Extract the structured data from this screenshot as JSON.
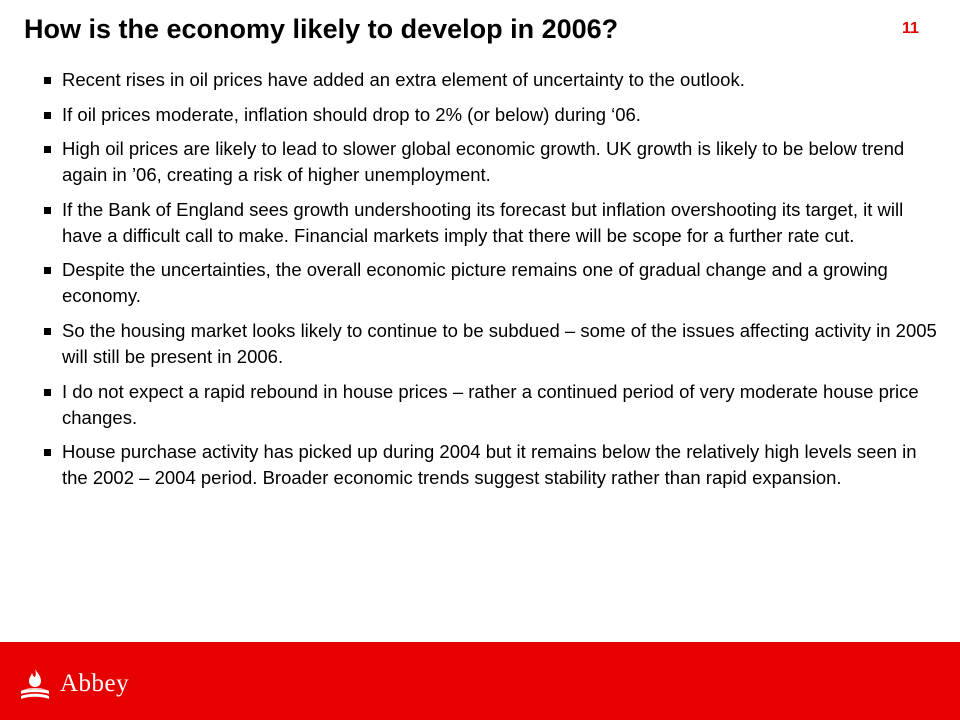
{
  "slide": {
    "title": "How is the economy likely to develop in 2006?",
    "page_number": "11",
    "bullets": [
      "Recent rises in oil prices have added an extra element of uncertainty to the outlook.",
      "If oil prices moderate, inflation should drop to 2% (or below) during ‘06.",
      "High oil prices are likely to lead to slower global economic growth.  UK growth is likely to be below trend again in ’06,  creating a risk of higher unemployment.",
      "If the Bank of England sees growth undershooting its forecast but inflation overshooting its target, it will have a difficult call to make.  Financial markets imply that there will be scope for a further rate cut.",
      "Despite the uncertainties, the overall economic picture remains one of gradual change and a growing economy.",
      "So the housing market looks likely to continue to be subdued – some of the issues affecting activity in 2005 will still be present in 2006.",
      "I do not expect a rapid rebound in house prices – rather a continued period of very moderate house price changes.",
      "House purchase activity has picked up during 2004 but it remains below the relatively high levels seen in the 2002 – 2004 period.  Broader economic trends suggest stability rather than rapid expansion."
    ]
  },
  "footer": {
    "brand_name": "Abbey",
    "logo_icon": "flame-icon",
    "background_color": "#e60000"
  },
  "colors": {
    "accent": "#e60000",
    "text": "#000000",
    "background": "#ffffff"
  }
}
